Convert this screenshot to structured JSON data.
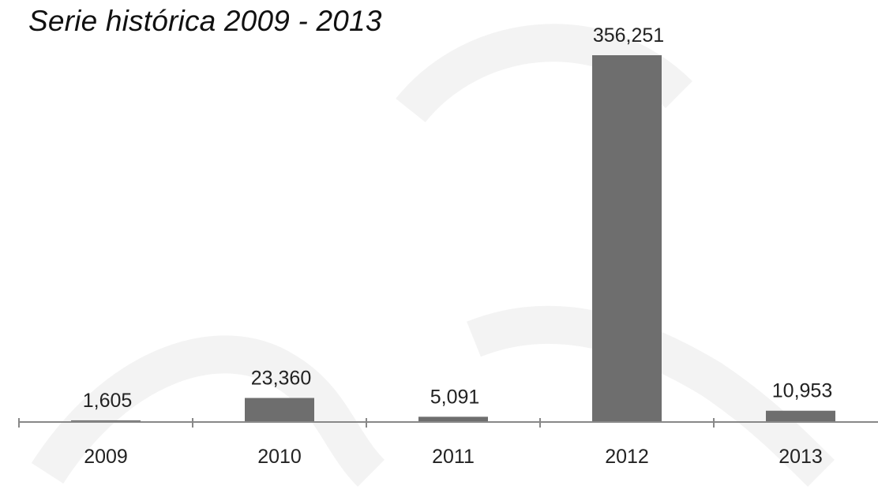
{
  "chart_data": {
    "type": "bar",
    "title": "Serie histórica 2009 - 2013",
    "xlabel": "",
    "ylabel": "",
    "categories": [
      "2009",
      "2010",
      "2011",
      "2012",
      "2013"
    ],
    "values": [
      1605,
      23360,
      5091,
      356251,
      10953
    ],
    "value_labels": [
      "1,605",
      "23,360",
      "5,091",
      "356,251",
      "10,953"
    ],
    "ylim": [
      0,
      356251
    ],
    "grid": false,
    "legend": "none",
    "colors": {
      "bar": "#6e6e6e",
      "axis": "#888888",
      "text": "#222222",
      "watermark": "#f2f2f2"
    }
  }
}
